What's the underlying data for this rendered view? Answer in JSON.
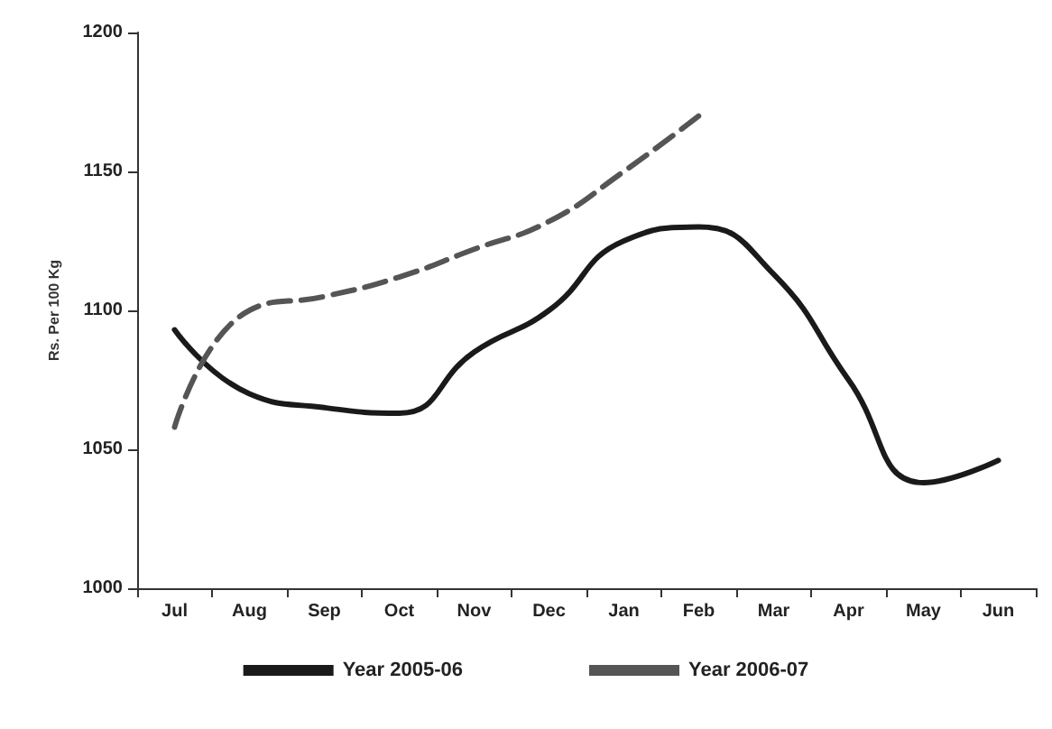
{
  "chart_data": {
    "type": "line",
    "ylabel": "Rs. Per 100 Kg",
    "categories": [
      "Jul",
      "Aug",
      "Sep",
      "Oct",
      "Nov",
      "Dec",
      "Jan",
      "Feb",
      "Mar",
      "Apr",
      "May",
      "Jun"
    ],
    "series": [
      {
        "name": "Year 2005-06",
        "color": "#1a1a1a",
        "line_style": "solid",
        "values": [
          1093,
          1070,
          1065,
          1063,
          1085,
          1100,
          1125,
          1130,
          1113,
          1075,
          1038,
          1046
        ]
      },
      {
        "name": "Year 2006-07",
        "color": "#555555",
        "line_style": "dashed",
        "values": [
          1058,
          1100,
          1105,
          1112,
          1122,
          1132,
          1150,
          1170,
          null,
          null,
          null,
          null
        ]
      }
    ],
    "ylim": [
      1000,
      1200
    ],
    "yticks": [
      1000,
      1050,
      1100,
      1150,
      1200
    ],
    "grid": false,
    "legend": "bottom",
    "marker": "none"
  }
}
